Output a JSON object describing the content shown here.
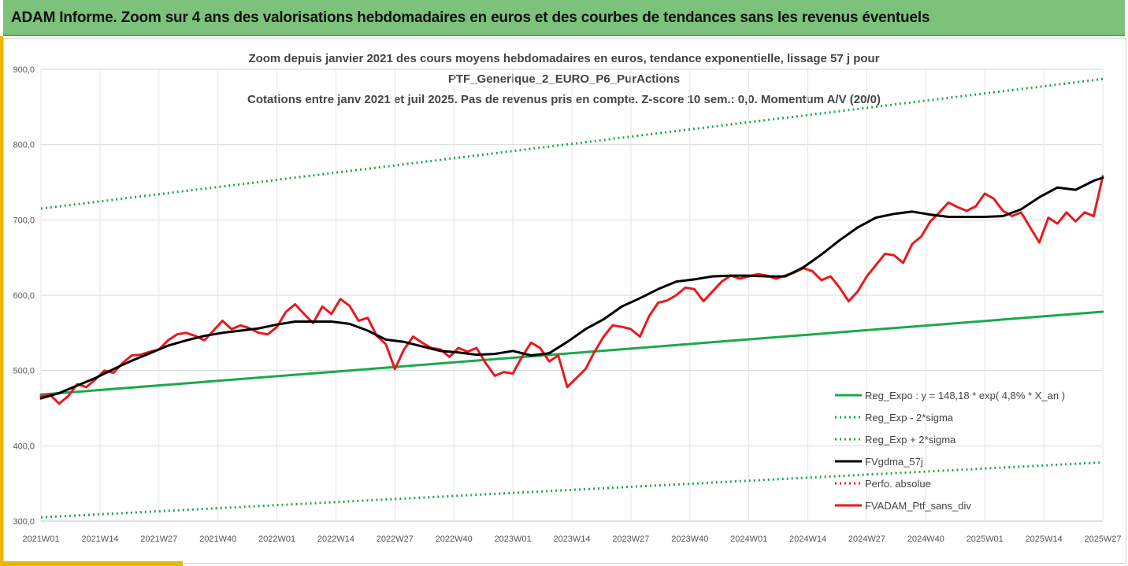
{
  "banner": {
    "title": "ADAM Informe. Zoom sur 4 ans des valorisations hebdomadaires en euros et des courbes de tendances sans les revenus éventuels"
  },
  "chart_data": {
    "type": "line",
    "title_lines": [
      "Zoom depuis janvier 2021 des cours moyens hebdomadaires  en euros, tendance exponentielle, lissage 57 j pour",
      "PTF_Generique_2_EURO_P6_PurActions",
      "Cotations entre janv 2021 et juil 2025. Pas de revenus pris en compte. Z-score 10 sem.: 0,0. Momentum A/V (20/0)"
    ],
    "y_ticks": [
      "900,0",
      "800,0",
      "700,0",
      "600,0",
      "500,0",
      "400,0",
      "300,0"
    ],
    "ylim": [
      300,
      900
    ],
    "x_ticks": [
      "2021W01",
      "2021W14",
      "2021W27",
      "2021W40",
      "2022W01",
      "2022W14",
      "2022W27",
      "2022W40",
      "2023W01",
      "2023W14",
      "2023W27",
      "2023W40",
      "2024W01",
      "2024W14",
      "2024W27",
      "2024W40",
      "2025W01",
      "2025W14",
      "2025W27"
    ],
    "x_domain_weeks": [
      0,
      234
    ],
    "grid": "horizontal",
    "legend_position": "bottom-right",
    "series": [
      {
        "name": "Reg_Expo : y = 148,18 * exp( 4,8% *  X_an )",
        "style": "solid",
        "color": "#1aaa4a",
        "width": 3,
        "points": [
          [
            0,
            468
          ],
          [
            234,
            578
          ]
        ]
      },
      {
        "name": "Reg_Exp - 2*sigma",
        "style": "dotted",
        "color": "#1aaa4a",
        "width": 3,
        "points": [
          [
            0,
            305
          ],
          [
            234,
            378
          ]
        ]
      },
      {
        "name": "Reg_Exp + 2*sigma",
        "style": "dotted",
        "color": "#1aaa4a",
        "width": 3,
        "points": [
          [
            0,
            715
          ],
          [
            234,
            887
          ]
        ]
      },
      {
        "name": "FVgdma_57j",
        "style": "solid",
        "color": "#000000",
        "width": 3,
        "points": [
          [
            0,
            463
          ],
          [
            4,
            470
          ],
          [
            8,
            480
          ],
          [
            12,
            490
          ],
          [
            16,
            502
          ],
          [
            20,
            513
          ],
          [
            24,
            523
          ],
          [
            28,
            533
          ],
          [
            32,
            540
          ],
          [
            36,
            546
          ],
          [
            40,
            550
          ],
          [
            44,
            553
          ],
          [
            48,
            556
          ],
          [
            52,
            561
          ],
          [
            56,
            565
          ],
          [
            60,
            565
          ],
          [
            64,
            565
          ],
          [
            68,
            562
          ],
          [
            72,
            553
          ],
          [
            76,
            541
          ],
          [
            80,
            538
          ],
          [
            84,
            532
          ],
          [
            88,
            526
          ],
          [
            92,
            524
          ],
          [
            96,
            521
          ],
          [
            100,
            522
          ],
          [
            104,
            526
          ],
          [
            108,
            520
          ],
          [
            112,
            523
          ],
          [
            116,
            538
          ],
          [
            120,
            555
          ],
          [
            124,
            568
          ],
          [
            128,
            585
          ],
          [
            132,
            596
          ],
          [
            136,
            608
          ],
          [
            140,
            618
          ],
          [
            144,
            621
          ],
          [
            148,
            625
          ],
          [
            152,
            626
          ],
          [
            156,
            626
          ],
          [
            160,
            625
          ],
          [
            164,
            625
          ],
          [
            168,
            637
          ],
          [
            172,
            654
          ],
          [
            176,
            673
          ],
          [
            180,
            690
          ],
          [
            184,
            703
          ],
          [
            188,
            708
          ],
          [
            192,
            711
          ],
          [
            196,
            707
          ],
          [
            200,
            704
          ],
          [
            204,
            704
          ],
          [
            208,
            704
          ],
          [
            212,
            705
          ],
          [
            216,
            714
          ],
          [
            220,
            730
          ],
          [
            224,
            743
          ],
          [
            228,
            740
          ],
          [
            232,
            752
          ],
          [
            234,
            756
          ]
        ]
      },
      {
        "name": "Perfo. absolue",
        "style": "dotted",
        "color": "#e02020",
        "width": 3,
        "points": []
      },
      {
        "name": "FVADAM_Ptf_sans_div",
        "style": "solid",
        "color": "#e8191c",
        "width": 3,
        "points": [
          [
            0,
            466
          ],
          [
            2,
            468
          ],
          [
            4,
            456
          ],
          [
            6,
            466
          ],
          [
            8,
            482
          ],
          [
            10,
            478
          ],
          [
            12,
            488
          ],
          [
            14,
            500
          ],
          [
            16,
            497
          ],
          [
            18,
            510
          ],
          [
            20,
            520
          ],
          [
            22,
            521
          ],
          [
            24,
            525
          ],
          [
            26,
            528
          ],
          [
            28,
            540
          ],
          [
            30,
            548
          ],
          [
            32,
            550
          ],
          [
            34,
            546
          ],
          [
            36,
            540
          ],
          [
            38,
            553
          ],
          [
            40,
            566
          ],
          [
            42,
            555
          ],
          [
            44,
            560
          ],
          [
            46,
            556
          ],
          [
            48,
            550
          ],
          [
            50,
            548
          ],
          [
            52,
            558
          ],
          [
            54,
            578
          ],
          [
            56,
            588
          ],
          [
            58,
            575
          ],
          [
            60,
            563
          ],
          [
            62,
            585
          ],
          [
            64,
            575
          ],
          [
            66,
            595
          ],
          [
            68,
            586
          ],
          [
            70,
            566
          ],
          [
            72,
            570
          ],
          [
            74,
            546
          ],
          [
            76,
            535
          ],
          [
            78,
            502
          ],
          [
            80,
            528
          ],
          [
            82,
            545
          ],
          [
            84,
            537
          ],
          [
            86,
            530
          ],
          [
            88,
            528
          ],
          [
            90,
            518
          ],
          [
            92,
            530
          ],
          [
            94,
            525
          ],
          [
            96,
            530
          ],
          [
            98,
            510
          ],
          [
            100,
            493
          ],
          [
            102,
            498
          ],
          [
            104,
            496
          ],
          [
            106,
            518
          ],
          [
            108,
            537
          ],
          [
            110,
            530
          ],
          [
            112,
            512
          ],
          [
            114,
            520
          ],
          [
            116,
            478
          ],
          [
            118,
            490
          ],
          [
            120,
            502
          ],
          [
            122,
            525
          ],
          [
            124,
            545
          ],
          [
            126,
            560
          ],
          [
            128,
            558
          ],
          [
            130,
            555
          ],
          [
            132,
            545
          ],
          [
            134,
            572
          ],
          [
            136,
            590
          ],
          [
            138,
            593
          ],
          [
            140,
            600
          ],
          [
            142,
            610
          ],
          [
            144,
            608
          ],
          [
            146,
            592
          ],
          [
            148,
            605
          ],
          [
            150,
            618
          ],
          [
            152,
            626
          ],
          [
            154,
            622
          ],
          [
            156,
            625
          ],
          [
            158,
            628
          ],
          [
            160,
            626
          ],
          [
            162,
            622
          ],
          [
            164,
            626
          ],
          [
            166,
            630
          ],
          [
            168,
            636
          ],
          [
            170,
            632
          ],
          [
            172,
            620
          ],
          [
            174,
            625
          ],
          [
            176,
            610
          ],
          [
            178,
            592
          ],
          [
            180,
            605
          ],
          [
            182,
            625
          ],
          [
            184,
            640
          ],
          [
            186,
            655
          ],
          [
            188,
            653
          ],
          [
            190,
            643
          ],
          [
            192,
            668
          ],
          [
            194,
            678
          ],
          [
            196,
            698
          ],
          [
            198,
            710
          ],
          [
            200,
            723
          ],
          [
            202,
            717
          ],
          [
            204,
            712
          ],
          [
            206,
            718
          ],
          [
            208,
            735
          ],
          [
            210,
            728
          ],
          [
            212,
            712
          ],
          [
            214,
            705
          ],
          [
            216,
            710
          ],
          [
            218,
            690
          ],
          [
            220,
            670
          ],
          [
            222,
            703
          ],
          [
            224,
            695
          ],
          [
            226,
            710
          ],
          [
            228,
            698
          ],
          [
            230,
            710
          ],
          [
            232,
            705
          ],
          [
            234,
            758
          ]
        ]
      }
    ]
  }
}
